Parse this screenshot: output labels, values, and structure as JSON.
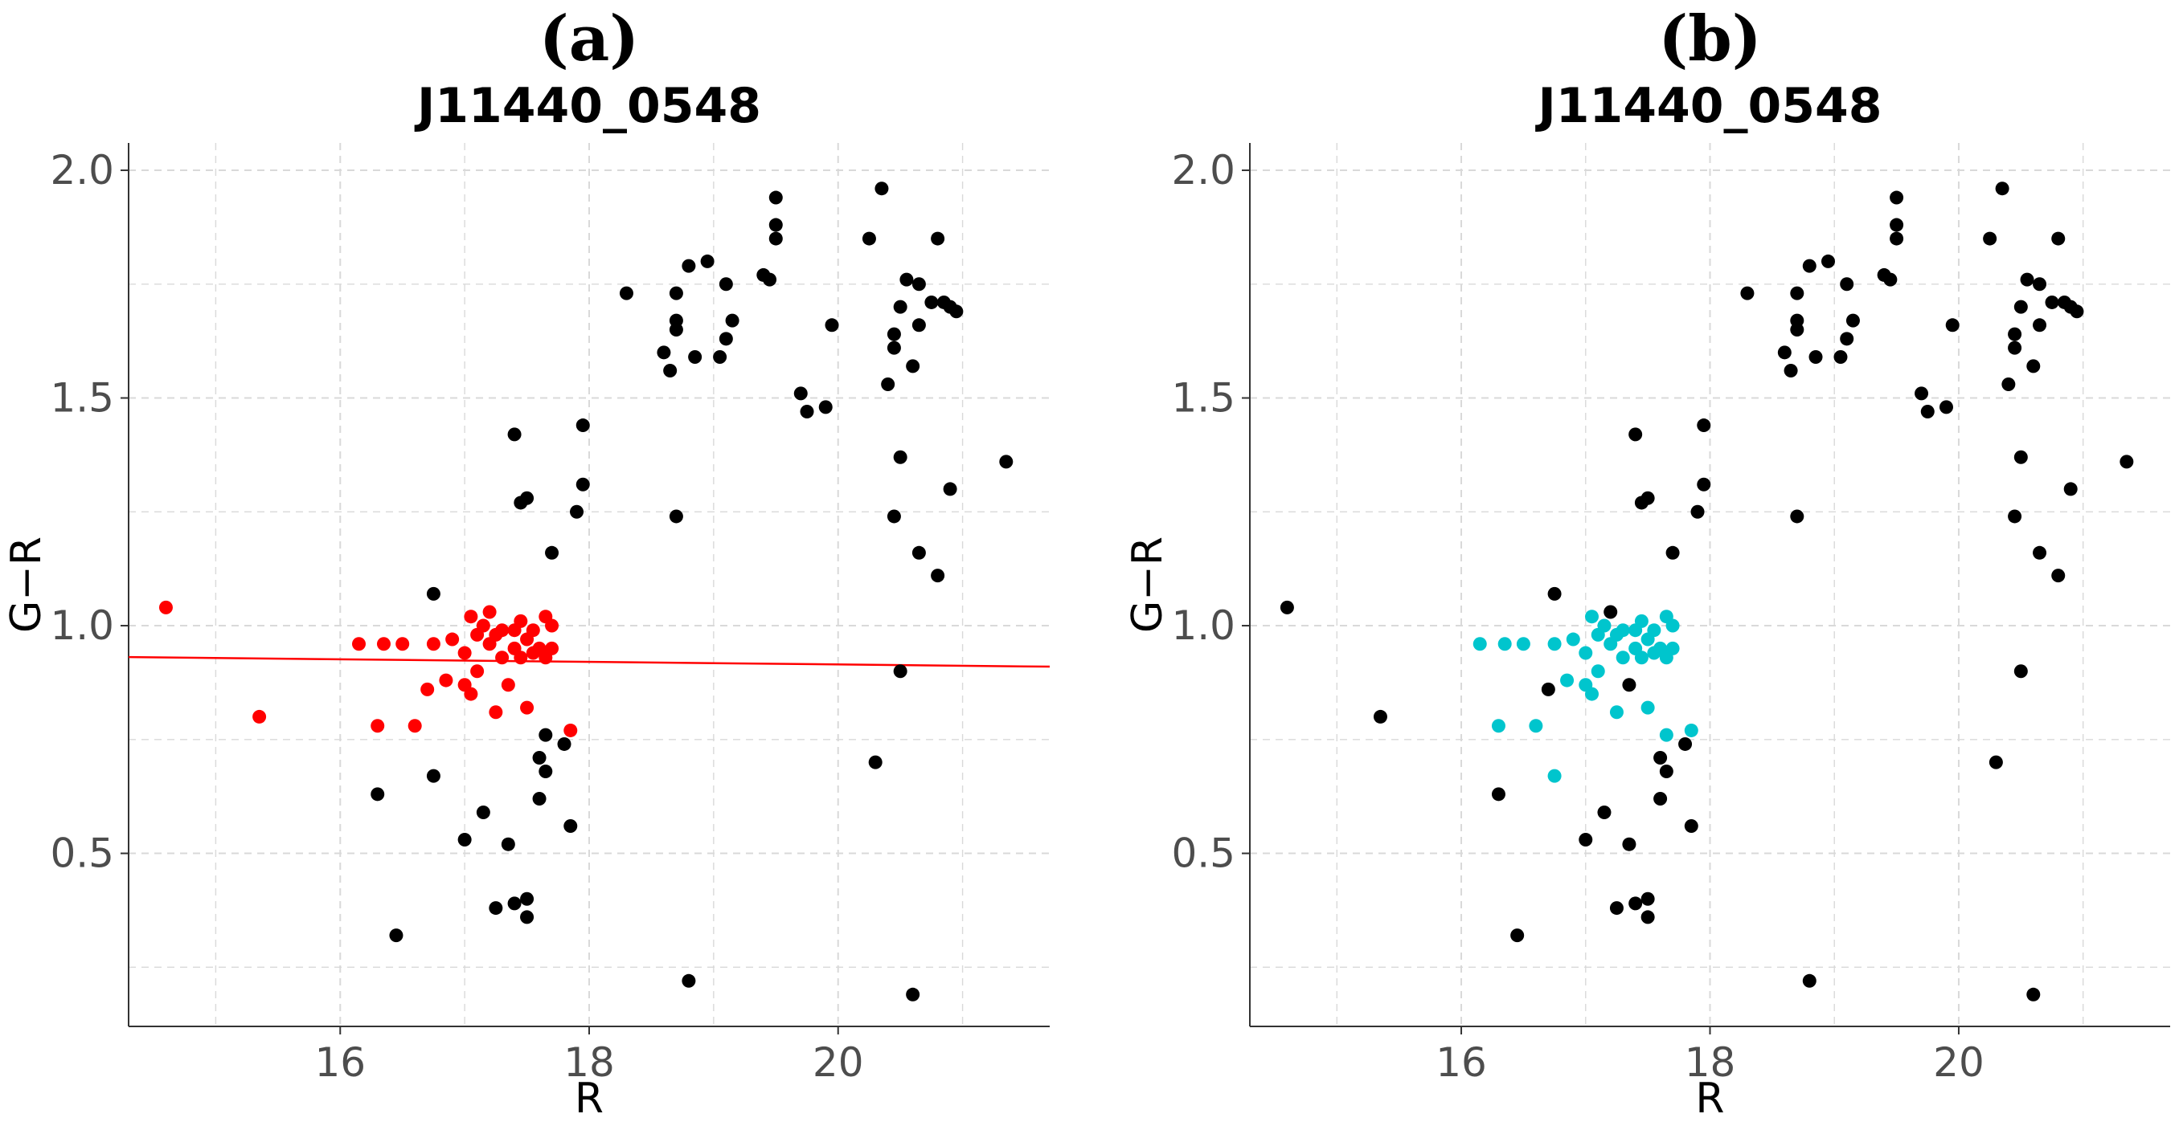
{
  "chart_data": [
    {
      "type": "scatter",
      "panel_label": "(a)",
      "title": "J11440_0548",
      "xlabel": "R",
      "ylabel": "G−R",
      "xlim": [
        14.3,
        21.7
      ],
      "ylim": [
        0.12,
        2.06
      ],
      "x_ticks": [
        16,
        18,
        20
      ],
      "x_tick_labels": [
        "16",
        "18",
        "20"
      ],
      "y_ticks": [
        0.5,
        1.0,
        1.5,
        2.0
      ],
      "y_tick_labels": [
        "0.5",
        "1.0",
        "1.5",
        "2.0"
      ],
      "grid": "on",
      "legend": "none",
      "fit_line": {
        "color": "#ff0000",
        "x": [
          14.3,
          21.7
        ],
        "y": [
          0.931,
          0.91
        ]
      },
      "series": [
        {
          "color": "#000000",
          "points": [
            [
              16.75,
              1.07
            ],
            [
              16.3,
              0.63
            ],
            [
              16.75,
              0.67
            ],
            [
              16.45,
              0.32
            ],
            [
              17.0,
              0.53
            ],
            [
              17.15,
              0.59
            ],
            [
              17.35,
              0.52
            ],
            [
              17.25,
              0.38
            ],
            [
              17.4,
              0.39
            ],
            [
              17.5,
              0.4
            ],
            [
              17.5,
              0.36
            ],
            [
              17.6,
              0.71
            ],
            [
              17.65,
              0.68
            ],
            [
              17.6,
              0.62
            ],
            [
              17.65,
              0.76
            ],
            [
              17.8,
              0.74
            ],
            [
              17.85,
              0.56
            ],
            [
              17.7,
              1.16
            ],
            [
              17.9,
              1.25
            ],
            [
              17.95,
              1.31
            ],
            [
              17.4,
              1.42
            ],
            [
              17.45,
              1.27
            ],
            [
              17.5,
              1.28
            ],
            [
              17.95,
              1.44
            ],
            [
              18.3,
              1.73
            ],
            [
              18.6,
              1.6
            ],
            [
              18.65,
              1.56
            ],
            [
              18.7,
              1.65
            ],
            [
              18.7,
              1.67
            ],
            [
              18.7,
              1.73
            ],
            [
              18.7,
              1.24
            ],
            [
              18.8,
              1.79
            ],
            [
              18.85,
              1.59
            ],
            [
              18.95,
              1.8
            ],
            [
              19.05,
              1.59
            ],
            [
              19.1,
              1.63
            ],
            [
              19.1,
              1.75
            ],
            [
              19.15,
              1.67
            ],
            [
              19.4,
              1.77
            ],
            [
              19.45,
              1.76
            ],
            [
              19.5,
              1.85
            ],
            [
              19.5,
              1.88
            ],
            [
              19.5,
              1.94
            ],
            [
              19.7,
              1.51
            ],
            [
              19.75,
              1.47
            ],
            [
              19.9,
              1.48
            ],
            [
              19.95,
              1.66
            ],
            [
              20.25,
              1.85
            ],
            [
              20.35,
              1.96
            ],
            [
              20.4,
              1.53
            ],
            [
              20.45,
              1.61
            ],
            [
              20.45,
              1.64
            ],
            [
              20.5,
              1.7
            ],
            [
              20.55,
              1.76
            ],
            [
              20.6,
              1.57
            ],
            [
              20.65,
              1.66
            ],
            [
              20.65,
              1.75
            ],
            [
              20.75,
              1.71
            ],
            [
              20.8,
              1.85
            ],
            [
              20.85,
              1.71
            ],
            [
              20.9,
              1.7
            ],
            [
              20.95,
              1.69
            ],
            [
              20.45,
              1.24
            ],
            [
              20.5,
              1.37
            ],
            [
              20.65,
              1.16
            ],
            [
              20.8,
              1.11
            ],
            [
              20.9,
              1.3
            ],
            [
              21.35,
              1.36
            ],
            [
              20.5,
              0.9
            ],
            [
              20.3,
              0.7
            ],
            [
              18.8,
              0.22
            ],
            [
              20.6,
              0.19
            ]
          ]
        },
        {
          "color": "#ff0000",
          "points": [
            [
              14.6,
              1.04
            ],
            [
              15.35,
              0.8
            ],
            [
              16.15,
              0.96
            ],
            [
              16.3,
              0.78
            ],
            [
              16.35,
              0.96
            ],
            [
              16.5,
              0.96
            ],
            [
              16.6,
              0.78
            ],
            [
              16.7,
              0.86
            ],
            [
              16.75,
              0.96
            ],
            [
              16.85,
              0.88
            ],
            [
              16.9,
              0.97
            ],
            [
              17.0,
              0.87
            ],
            [
              17.0,
              0.94
            ],
            [
              17.05,
              0.85
            ],
            [
              17.1,
              0.9
            ],
            [
              17.05,
              1.02
            ],
            [
              17.1,
              0.98
            ],
            [
              17.15,
              1.0
            ],
            [
              17.2,
              1.03
            ],
            [
              17.2,
              0.96
            ],
            [
              17.25,
              0.81
            ],
            [
              17.25,
              0.98
            ],
            [
              17.3,
              0.99
            ],
            [
              17.3,
              0.93
            ],
            [
              17.35,
              0.87
            ],
            [
              17.4,
              0.95
            ],
            [
              17.4,
              0.99
            ],
            [
              17.45,
              1.01
            ],
            [
              17.45,
              0.93
            ],
            [
              17.5,
              0.97
            ],
            [
              17.5,
              0.82
            ],
            [
              17.55,
              0.94
            ],
            [
              17.55,
              0.99
            ],
            [
              17.6,
              0.95
            ],
            [
              17.65,
              1.02
            ],
            [
              17.65,
              0.93
            ],
            [
              17.7,
              1.0
            ],
            [
              17.7,
              0.95
            ],
            [
              17.85,
              0.77
            ]
          ]
        }
      ]
    },
    {
      "type": "scatter",
      "panel_label": "(b)",
      "title": "J11440_0548",
      "xlabel": "R",
      "ylabel": "G−R",
      "xlim": [
        14.3,
        21.7
      ],
      "ylim": [
        0.12,
        2.06
      ],
      "x_ticks": [
        16,
        18,
        20
      ],
      "x_tick_labels": [
        "16",
        "18",
        "20"
      ],
      "y_ticks": [
        0.5,
        1.0,
        1.5,
        2.0
      ],
      "y_tick_labels": [
        "0.5",
        "1.0",
        "1.5",
        "2.0"
      ],
      "grid": "on",
      "legend": "none",
      "series": [
        {
          "color": "#000000",
          "points": [
            [
              14.6,
              1.04
            ],
            [
              15.35,
              0.8
            ],
            [
              16.75,
              1.07
            ],
            [
              16.3,
              0.63
            ],
            [
              16.45,
              0.32
            ],
            [
              17.0,
              0.53
            ],
            [
              17.15,
              0.59
            ],
            [
              17.35,
              0.52
            ],
            [
              17.25,
              0.38
            ],
            [
              17.4,
              0.39
            ],
            [
              17.5,
              0.4
            ],
            [
              17.5,
              0.36
            ],
            [
              17.6,
              0.71
            ],
            [
              17.65,
              0.68
            ],
            [
              17.6,
              0.62
            ],
            [
              17.8,
              0.74
            ],
            [
              17.85,
              0.56
            ],
            [
              17.2,
              1.03
            ],
            [
              17.35,
              0.87
            ],
            [
              16.7,
              0.86
            ],
            [
              17.7,
              1.16
            ],
            [
              17.9,
              1.25
            ],
            [
              17.95,
              1.31
            ],
            [
              17.4,
              1.42
            ],
            [
              17.45,
              1.27
            ],
            [
              17.5,
              1.28
            ],
            [
              17.95,
              1.44
            ],
            [
              18.3,
              1.73
            ],
            [
              18.6,
              1.6
            ],
            [
              18.65,
              1.56
            ],
            [
              18.7,
              1.65
            ],
            [
              18.7,
              1.67
            ],
            [
              18.7,
              1.73
            ],
            [
              18.7,
              1.24
            ],
            [
              18.8,
              1.79
            ],
            [
              18.85,
              1.59
            ],
            [
              18.95,
              1.8
            ],
            [
              19.05,
              1.59
            ],
            [
              19.1,
              1.63
            ],
            [
              19.1,
              1.75
            ],
            [
              19.15,
              1.67
            ],
            [
              19.4,
              1.77
            ],
            [
              19.45,
              1.76
            ],
            [
              19.5,
              1.85
            ],
            [
              19.5,
              1.88
            ],
            [
              19.5,
              1.94
            ],
            [
              19.7,
              1.51
            ],
            [
              19.75,
              1.47
            ],
            [
              19.9,
              1.48
            ],
            [
              19.95,
              1.66
            ],
            [
              20.25,
              1.85
            ],
            [
              20.35,
              1.96
            ],
            [
              20.4,
              1.53
            ],
            [
              20.45,
              1.61
            ],
            [
              20.45,
              1.64
            ],
            [
              20.5,
              1.7
            ],
            [
              20.55,
              1.76
            ],
            [
              20.6,
              1.57
            ],
            [
              20.65,
              1.66
            ],
            [
              20.65,
              1.75
            ],
            [
              20.75,
              1.71
            ],
            [
              20.8,
              1.85
            ],
            [
              20.85,
              1.71
            ],
            [
              20.9,
              1.7
            ],
            [
              20.95,
              1.69
            ],
            [
              20.45,
              1.24
            ],
            [
              20.5,
              1.37
            ],
            [
              20.65,
              1.16
            ],
            [
              20.8,
              1.11
            ],
            [
              20.9,
              1.3
            ],
            [
              21.35,
              1.36
            ],
            [
              20.5,
              0.9
            ],
            [
              20.3,
              0.7
            ],
            [
              18.8,
              0.22
            ],
            [
              20.6,
              0.19
            ]
          ]
        },
        {
          "color": "#00c5cd",
          "points": [
            [
              16.15,
              0.96
            ],
            [
              16.3,
              0.78
            ],
            [
              16.35,
              0.96
            ],
            [
              16.5,
              0.96
            ],
            [
              16.6,
              0.78
            ],
            [
              16.75,
              0.67
            ],
            [
              16.75,
              0.96
            ],
            [
              16.85,
              0.88
            ],
            [
              16.9,
              0.97
            ],
            [
              17.0,
              0.87
            ],
            [
              17.0,
              0.94
            ],
            [
              17.05,
              0.85
            ],
            [
              17.1,
              0.9
            ],
            [
              17.05,
              1.02
            ],
            [
              17.1,
              0.98
            ],
            [
              17.15,
              1.0
            ],
            [
              17.2,
              0.96
            ],
            [
              17.25,
              0.81
            ],
            [
              17.25,
              0.98
            ],
            [
              17.3,
              0.99
            ],
            [
              17.3,
              0.93
            ],
            [
              17.4,
              0.95
            ],
            [
              17.4,
              0.99
            ],
            [
              17.45,
              1.01
            ],
            [
              17.45,
              0.93
            ],
            [
              17.5,
              0.97
            ],
            [
              17.5,
              0.82
            ],
            [
              17.55,
              0.94
            ],
            [
              17.55,
              0.99
            ],
            [
              17.6,
              0.95
            ],
            [
              17.65,
              1.02
            ],
            [
              17.65,
              0.93
            ],
            [
              17.7,
              1.0
            ],
            [
              17.7,
              0.95
            ],
            [
              17.65,
              0.76
            ],
            [
              17.85,
              0.77
            ]
          ]
        }
      ]
    }
  ]
}
